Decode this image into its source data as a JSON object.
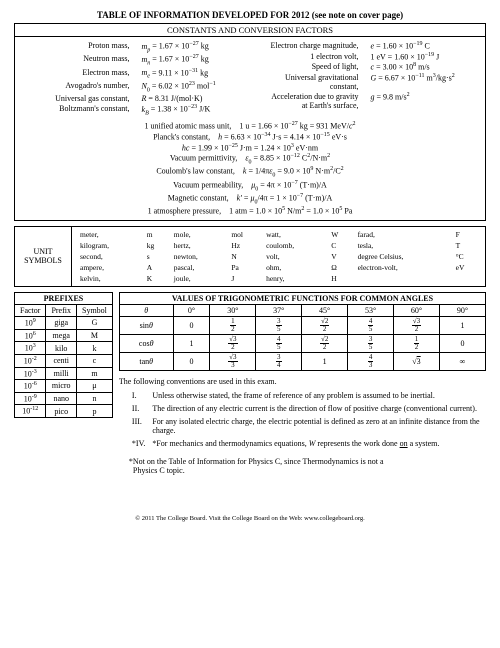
{
  "title": "TABLE OF INFORMATION DEVELOPED FOR 2012 (see note on cover page)",
  "section1_header": "CONSTANTS AND CONVERSION FACTORS",
  "constants_left": [
    {
      "label": "Proton mass,",
      "expr": "m_p = 1.67 × 10^{-27} kg"
    },
    {
      "label": "Neutron mass,",
      "expr": "m_n = 1.67 × 10^{-27} kg"
    },
    {
      "label": "Electron mass,",
      "expr": "m_e = 9.11 × 10^{-31} kg"
    },
    {
      "label": "Avogadro's number,",
      "expr": "N_0 = 6.02 × 10^{23} mol^{-1}"
    },
    {
      "label": "Universal gas constant,",
      "expr": "R = 8.31 J/(mol·K)"
    },
    {
      "label": "Boltzmann's constant,",
      "expr": "k_B = 1.38 × 10^{-23} J/K"
    }
  ],
  "constants_right": [
    {
      "label": "Electron charge magnitude,",
      "expr": "e = 1.60 × 10^{-19} C"
    },
    {
      "label": "1 electron volt,",
      "expr": "1 eV = 1.60 × 10^{-19} J"
    },
    {
      "label": "Speed of light,",
      "expr": "c = 3.00 × 10^8 m/s"
    },
    {
      "label": "Universal gravitational constant,",
      "expr": "G = 6.67 × 10^{-11} m^3/kg·s^2"
    },
    {
      "label": "Acceleration due to gravity at Earth's surface,",
      "expr": "g = 9.8 m/s^2"
    }
  ],
  "constants_center": [
    "1 unified atomic mass unit,    1 u = 1.66 × 10^{-27} kg = 931 MeV/c^2",
    "Planck's constant,    h = 6.63 × 10^{-34} J·s = 4.14 × 10^{-15} eV·s",
    "hc = 1.99 × 10^{-25} J·m = 1.24 × 10^3 eV·nm",
    "Vacuum permittivity,    ε_0 = 8.85 × 10^{-12} C^2/N·m^2",
    "Coulomb's law constant,    k = 1/4πε_0 = 9.0 × 10^9 N·m^2/C^2",
    "Vacuum permeability,    μ_0 = 4π × 10^{-7} (T·m)/A",
    "Magnetic constant,    k' = μ_0/4π = 1 × 10^{-7} (T·m)/A",
    "1 atmosphere pressure,    1 atm = 1.0 × 10^5 N/m^2 = 1.0 × 10^5 Pa"
  ],
  "units_label": "UNIT SYMBOLS",
  "units_cols": [
    [
      "meter,",
      "kilogram,",
      "second,",
      "ampere,",
      "kelvin,"
    ],
    [
      "m",
      "kg",
      "s",
      "A",
      "K"
    ],
    [
      "mole,",
      "hertz,",
      "newton,",
      "pascal,",
      "joule,"
    ],
    [
      "mol",
      "Hz",
      "N",
      "Pa",
      "J"
    ],
    [
      "watt,",
      "coulomb,",
      "volt,",
      "ohm,",
      "henry,"
    ],
    [
      "W",
      "C",
      "V",
      "Ω",
      "H"
    ],
    [
      "farad,",
      "tesla,",
      "degree Celsius,",
      "electron-volt,",
      ""
    ],
    [
      "F",
      "T",
      "°C",
      "eV",
      ""
    ]
  ],
  "prefixes_header": "PREFIXES",
  "prefixes_cols": [
    "Factor",
    "Prefix",
    "Symbol"
  ],
  "prefixes_rows": [
    [
      "10^9",
      "giga",
      "G"
    ],
    [
      "10^6",
      "mega",
      "M"
    ],
    [
      "10^3",
      "kilo",
      "k"
    ],
    [
      "10^{-2}",
      "centi",
      "c"
    ],
    [
      "10^{-3}",
      "milli",
      "m"
    ],
    [
      "10^{-6}",
      "micro",
      "μ"
    ],
    [
      "10^{-9}",
      "nano",
      "n"
    ],
    [
      "10^{-12}",
      "pico",
      "p"
    ]
  ],
  "trig_header": "VALUES OF TRIGONOMETRIC FUNCTIONS FOR COMMON ANGLES",
  "trig_angle_row": [
    "θ",
    "0°",
    "30°",
    "37°",
    "45°",
    "53°",
    "60°",
    "90°"
  ],
  "trig_rows": [
    [
      "sinθ",
      "0",
      "1/2",
      "3/5",
      "√2/2",
      "4/5",
      "√3/2",
      "1"
    ],
    [
      "cosθ",
      "1",
      "√3/2",
      "4/5",
      "√2/2",
      "3/5",
      "1/2",
      "0"
    ],
    [
      "tanθ",
      "0",
      "√3/3",
      "3/4",
      "1",
      "4/3",
      "√3",
      "∞"
    ]
  ],
  "conventions_intro": "The following conventions are used in this exam.",
  "conventions": [
    "Unless otherwise stated, the frame of reference of any problem is assumed to be inertial.",
    "The direction of any electric current is the direction of flow of positive charge (conventional current).",
    "For any isolated electric charge, the electric potential is defined as zero at an infinite distance from the charge.",
    "*For mechanics and thermodynamics equations, W represents the work done on a system."
  ],
  "conv_markers": [
    "I.",
    "II.",
    "III.",
    "*IV."
  ],
  "note_text": "*Not on the Table of Information for Physics C, since Thermodynamics is not a Physics C topic.",
  "footer_text": "© 2011 The College Board. Visit the College Board on the Web: www.collegeboard.org."
}
